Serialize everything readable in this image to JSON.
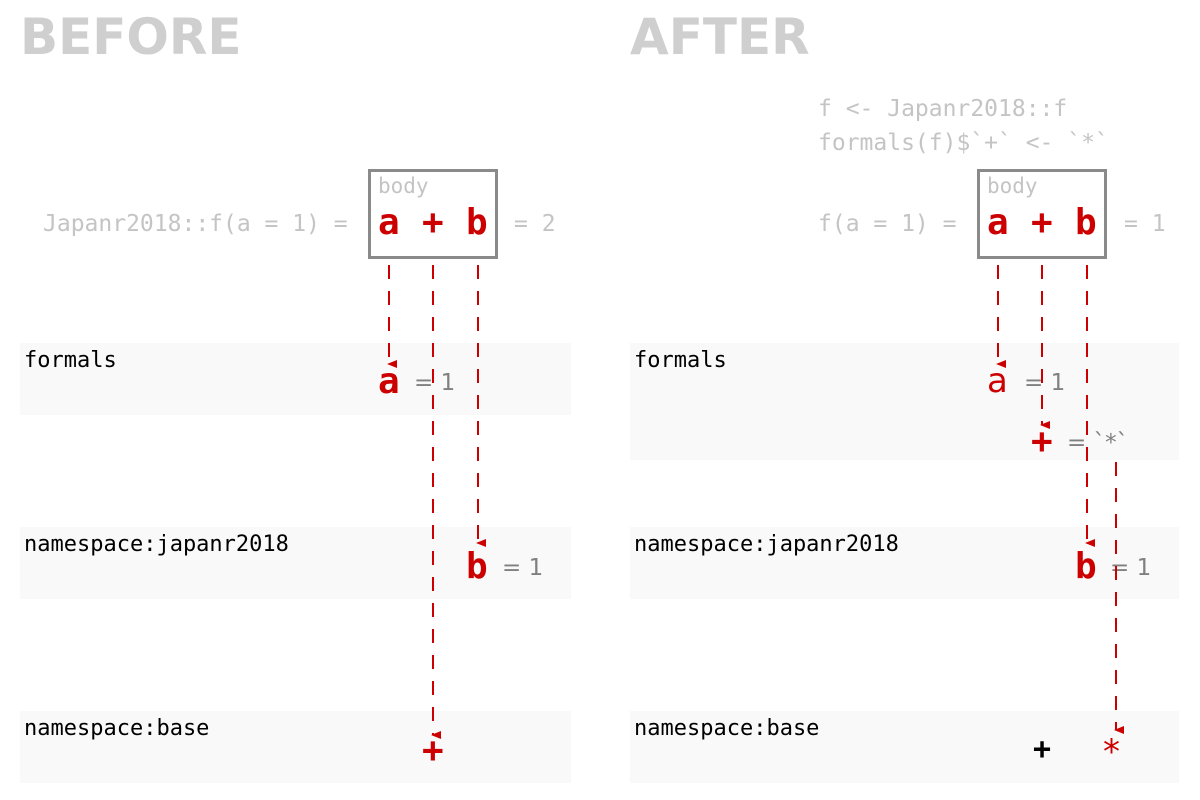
{
  "before": {
    "heading": "BEFORE",
    "call_left": "Japanr2018::f(a = 1) =",
    "call_right": "= 2",
    "body_label": "body",
    "body_symbols": {
      "a": "a",
      "plus": "+",
      "b": "b"
    },
    "envs": {
      "formals": {
        "label": "formals",
        "symbol": "a",
        "eq": "= 1"
      },
      "japanr2018": {
        "label": "namespace:japanr2018",
        "symbol": "b",
        "eq": "= 1"
      },
      "base": {
        "label": "namespace:base",
        "symbol": "+"
      }
    }
  },
  "after": {
    "heading": "AFTER",
    "code_line1": "f <- Japanr2018::f",
    "code_line2": "formals(f)$`+` <- `*`",
    "call_left": "f(a = 1) =",
    "call_right": "= 1",
    "body_label": "body",
    "body_symbols": {
      "a": "a",
      "plus": "+",
      "b": "b"
    },
    "envs": {
      "formals": {
        "label": "formals",
        "symbol_a": "a",
        "eq_a": "= 1",
        "symbol_plus": "+",
        "eq_plus": "= `*`"
      },
      "japanr2018": {
        "label": "namespace:japanr2018",
        "symbol": "b",
        "eq": "= 1"
      },
      "base": {
        "label": "namespace:base",
        "symbol_plus": "+",
        "symbol_star": "*"
      }
    }
  },
  "colors": {
    "accent": "#cc0000",
    "muted": "#c4c4c4",
    "box": "#8a8a8a",
    "band": "#f9f9f9"
  }
}
